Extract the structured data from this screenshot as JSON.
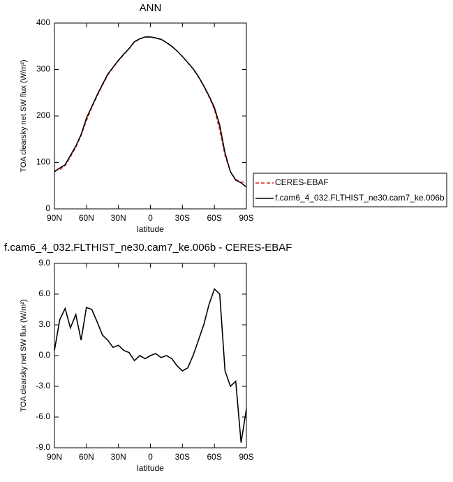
{
  "chart_data": [
    {
      "type": "line",
      "title": "ANN",
      "x_label": "latitude",
      "y_label": "TOA clearsky net SW flux (W/m²)",
      "x": [
        90,
        85,
        80,
        75,
        70,
        65,
        60,
        55,
        50,
        45,
        40,
        35,
        30,
        25,
        20,
        15,
        10,
        5,
        0,
        -5,
        -10,
        -15,
        -20,
        -25,
        -30,
        -35,
        -40,
        -45,
        -50,
        -55,
        -60,
        -65,
        -70,
        -75,
        -80,
        -85,
        -90
      ],
      "xlim": [
        90,
        -90
      ],
      "xticks": [
        {
          "value": 90,
          "label": "90N"
        },
        {
          "value": 60,
          "label": "60N"
        },
        {
          "value": 30,
          "label": "30N"
        },
        0,
        {
          "value": -30,
          "label": "30S"
        },
        {
          "value": -60,
          "label": "60S"
        },
        {
          "value": -90,
          "label": "90S"
        }
      ],
      "ylim": [
        0,
        400
      ],
      "yticks": [
        0,
        100,
        200,
        300,
        400
      ],
      "legend": "right",
      "series": [
        {
          "name": "CERES-EBAF",
          "color": "#e8201b",
          "dash": true,
          "values": [
            82,
            85,
            93,
            112,
            133,
            158,
            190,
            218,
            243,
            266,
            288,
            304,
            319,
            332,
            345,
            359,
            366,
            370,
            370,
            368,
            365,
            358,
            350,
            340,
            328,
            315,
            301,
            284,
            264,
            241,
            214,
            170,
            115,
            80,
            63,
            58,
            57
          ]
        },
        {
          "name": "f.cam6_4_032.FLTHIST_ne30.cam7_ke.006b",
          "color": "#000000",
          "dash": false,
          "values": [
            80,
            88,
            95,
            115,
            135,
            160,
            195,
            220,
            245,
            268,
            290,
            305,
            320,
            333,
            345,
            360,
            366,
            370,
            370,
            368,
            365,
            358,
            350,
            340,
            328,
            315,
            302,
            285,
            265,
            243,
            218,
            180,
            120,
            80,
            62,
            56,
            47
          ]
        }
      ]
    },
    {
      "type": "line",
      "title": "f.cam6_4_032.FLTHIST_ne30.cam7_ke.006b - CERES-EBAF",
      "x_label": "latitude",
      "y_label": "TOA clearsky net SW flux (W/m²)",
      "x": [
        90,
        85,
        80,
        75,
        70,
        65,
        60,
        55,
        50,
        45,
        40,
        35,
        30,
        25,
        20,
        15,
        10,
        5,
        0,
        -5,
        -10,
        -15,
        -20,
        -25,
        -30,
        -35,
        -40,
        -45,
        -50,
        -55,
        -60,
        -65,
        -70,
        -75,
        -80,
        -85,
        -90
      ],
      "xlim": [
        90,
        -90
      ],
      "xticks": [
        {
          "value": 90,
          "label": "90N"
        },
        {
          "value": 60,
          "label": "60N"
        },
        {
          "value": 30,
          "label": "30N"
        },
        0,
        {
          "value": -30,
          "label": "30S"
        },
        {
          "value": -60,
          "label": "60S"
        },
        {
          "value": -90,
          "label": "90S"
        }
      ],
      "ylim": [
        -9,
        9
      ],
      "yticks": [
        {
          "value": -9,
          "label": "-9.0"
        },
        {
          "value": -6,
          "label": "-6.0"
        },
        {
          "value": -3,
          "label": "-3.0"
        },
        {
          "value": 0,
          "label": "0.0"
        },
        {
          "value": 3,
          "label": "3.0"
        },
        {
          "value": 6,
          "label": "6.0"
        },
        {
          "value": 9,
          "label": "9.0"
        }
      ],
      "series": [
        {
          "color": "#000000",
          "dash": false,
          "values": [
            0.5,
            3.5,
            4.6,
            2.7,
            4.0,
            1.5,
            4.7,
            4.5,
            3.3,
            2.0,
            1.5,
            0.8,
            1.0,
            0.5,
            0.3,
            -0.5,
            0,
            -0.3,
            0,
            0.2,
            -0.2,
            0,
            -0.3,
            -1.0,
            -1.5,
            -1.2,
            0,
            1.5,
            3.0,
            5.0,
            6.5,
            6.0,
            -1.5,
            -3.0,
            -2.5,
            -8.5,
            -5.2
          ]
        }
      ]
    }
  ]
}
